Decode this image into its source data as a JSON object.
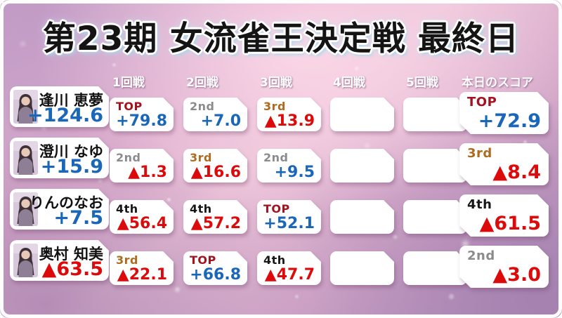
{
  "title": "第23期 女流雀王決定戦 最終日",
  "columns": [
    "1回戦",
    "2回戦",
    "3回戦",
    "4回戦",
    "5回戦",
    "本日のスコア"
  ],
  "players": [
    {
      "name": "逢川 恵夢",
      "total": "+124.6",
      "rounds": [
        {
          "rank": "TOP",
          "score": "+79.8"
        },
        {
          "rank": "2nd",
          "score": "+7.0"
        },
        {
          "rank": "3rd",
          "score": "▲13.9"
        },
        null,
        null
      ],
      "today": {
        "rank": "TOP",
        "score": "+72.9"
      }
    },
    {
      "name": "澄川 なゆ",
      "total": "+15.9",
      "rounds": [
        {
          "rank": "2nd",
          "score": "▲1.3"
        },
        {
          "rank": "3rd",
          "score": "▲16.6"
        },
        {
          "rank": "2nd",
          "score": "+9.5"
        },
        null,
        null
      ],
      "today": {
        "rank": "3rd",
        "score": "▲8.4"
      }
    },
    {
      "name": "りんのなお",
      "total": "+7.5",
      "rounds": [
        {
          "rank": "4th",
          "score": "▲56.4"
        },
        {
          "rank": "4th",
          "score": "▲57.2"
        },
        {
          "rank": "TOP",
          "score": "+52.1"
        },
        null,
        null
      ],
      "today": {
        "rank": "4th",
        "score": "▲61.5"
      }
    },
    {
      "name": "奥村 知美",
      "total": "▲63.5",
      "rounds": [
        {
          "rank": "3rd",
          "score": "▲22.1"
        },
        {
          "rank": "TOP",
          "score": "+66.8"
        },
        {
          "rank": "4th",
          "score": "▲47.7"
        },
        null,
        null
      ],
      "today": {
        "rank": "2nd",
        "score": "▲3.0"
      }
    }
  ],
  "colors": {
    "positive_score": "#1a66b8",
    "negative_score": "#dc0a0a",
    "rank_top": "#a5121f",
    "rank_2nd": "#8b8b8b",
    "rank_3rd": "#ad6b1e",
    "rank_4th": "#161616",
    "header_text": "#ffffff",
    "title_text": "#141414",
    "title_glow": "#bfe6f2",
    "cell_bg": "#ffffff",
    "background_pink": "#ecc4d9",
    "background_purple": "#ad8db8"
  }
}
